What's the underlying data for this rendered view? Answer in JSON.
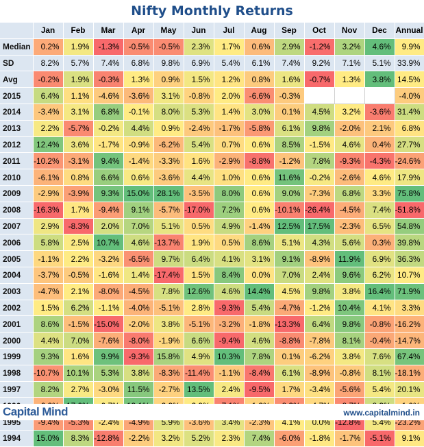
{
  "title": "Nifty Monthly Returns",
  "brand": "Capital Mind",
  "website": "www.capitalmind.in",
  "colors": {
    "header_bg": "#dce6f1",
    "title": "#1f4e8a",
    "low": "#f8696b",
    "mid": "#ffeb84",
    "high": "#63be7b"
  },
  "chart_data": {
    "type": "table",
    "columns": [
      "Jan",
      "Feb",
      "Mar",
      "Apr",
      "May",
      "Jun",
      "Jul",
      "Aug",
      "Sep",
      "Oct",
      "Nov",
      "Dec",
      "Annual"
    ],
    "rows": [
      {
        "label": "Median",
        "values": [
          "0.2%",
          "1.9%",
          "-1.3%",
          "-0.5%",
          "-0.5%",
          "2.3%",
          "1.7%",
          "0.6%",
          "2.9%",
          "-1.2%",
          "3.2%",
          "4.6%",
          "9.9%"
        ],
        "kind": "stat"
      },
      {
        "label": "SD",
        "values": [
          "8.2%",
          "5.7%",
          "7.4%",
          "6.8%",
          "9.8%",
          "6.9%",
          "5.4%",
          "6.1%",
          "7.4%",
          "9.2%",
          "7.1%",
          "5.1%",
          "33.9%"
        ],
        "kind": "sd"
      },
      {
        "label": "Avg",
        "values": [
          "-0.2%",
          "1.9%",
          "-0.3%",
          "1.3%",
          "0.9%",
          "1.5%",
          "1.2%",
          "0.8%",
          "1.6%",
          "-0.7%",
          "1.3%",
          "3.8%",
          "14.5%"
        ],
        "kind": "stat"
      },
      {
        "label": "2015",
        "values": [
          "6.4%",
          "1.1%",
          "-4.6%",
          "-3.6%",
          "3.1%",
          "-0.8%",
          "2.0%",
          "-6.6%",
          "-0.3%",
          "",
          "",
          "",
          "-4.0%"
        ],
        "kind": "year"
      },
      {
        "label": "2014",
        "values": [
          "-3.4%",
          "3.1%",
          "6.8%",
          "-0.1%",
          "8.0%",
          "5.3%",
          "1.4%",
          "3.0%",
          "0.1%",
          "4.5%",
          "3.2%",
          "-3.6%",
          "31.4%"
        ],
        "kind": "year"
      },
      {
        "label": "2013",
        "values": [
          "2.2%",
          "-5.7%",
          "-0.2%",
          "4.4%",
          "0.9%",
          "-2.4%",
          "-1.7%",
          "-5.8%",
          "6.1%",
          "9.8%",
          "-2.0%",
          "2.1%",
          "6.8%"
        ],
        "kind": "year"
      },
      {
        "label": "2012",
        "values": [
          "12.4%",
          "3.6%",
          "-1.7%",
          "-0.9%",
          "-6.2%",
          "5.4%",
          "0.7%",
          "0.6%",
          "8.5%",
          "-1.5%",
          "4.6%",
          "0.4%",
          "27.7%"
        ],
        "kind": "year"
      },
      {
        "label": "2011",
        "values": [
          "-10.2%",
          "-3.1%",
          "9.4%",
          "-1.4%",
          "-3.3%",
          "1.6%",
          "-2.9%",
          "-8.8%",
          "-1.2%",
          "7.8%",
          "-9.3%",
          "-4.3%",
          "-24.6%"
        ],
        "kind": "year"
      },
      {
        "label": "2010",
        "values": [
          "-6.1%",
          "0.8%",
          "6.6%",
          "0.6%",
          "-3.6%",
          "4.4%",
          "1.0%",
          "0.6%",
          "11.6%",
          "-0.2%",
          "-2.6%",
          "4.6%",
          "17.9%"
        ],
        "kind": "year"
      },
      {
        "label": "2009",
        "values": [
          "-2.9%",
          "-3.9%",
          "9.3%",
          "15.0%",
          "28.1%",
          "-3.5%",
          "8.0%",
          "0.6%",
          "9.0%",
          "-7.3%",
          "6.8%",
          "3.3%",
          "75.8%"
        ],
        "kind": "year"
      },
      {
        "label": "2008",
        "values": [
          "-16.3%",
          "1.7%",
          "-9.4%",
          "9.1%",
          "-5.7%",
          "-17.0%",
          "7.2%",
          "0.6%",
          "-10.1%",
          "-26.4%",
          "-4.5%",
          "7.4%",
          "-51.8%"
        ],
        "kind": "year"
      },
      {
        "label": "2007",
        "values": [
          "2.9%",
          "-8.3%",
          "2.0%",
          "7.0%",
          "5.1%",
          "0.5%",
          "4.9%",
          "-1.4%",
          "12.5%",
          "17.5%",
          "-2.3%",
          "6.5%",
          "54.8%"
        ],
        "kind": "year"
      },
      {
        "label": "2006",
        "values": [
          "5.8%",
          "2.5%",
          "10.7%",
          "4.6%",
          "-13.7%",
          "1.9%",
          "0.5%",
          "8.6%",
          "5.1%",
          "4.3%",
          "5.6%",
          "0.3%",
          "39.8%"
        ],
        "kind": "year"
      },
      {
        "label": "2005",
        "values": [
          "-1.1%",
          "2.2%",
          "-3.2%",
          "-6.5%",
          "9.7%",
          "6.4%",
          "4.1%",
          "3.1%",
          "9.1%",
          "-8.9%",
          "11.9%",
          "6.9%",
          "36.3%"
        ],
        "kind": "year"
      },
      {
        "label": "2004",
        "values": [
          "-3.7%",
          "-0.5%",
          "-1.6%",
          "1.4%",
          "-17.4%",
          "1.5%",
          "8.4%",
          "0.0%",
          "7.0%",
          "2.4%",
          "9.6%",
          "6.2%",
          "10.7%"
        ],
        "kind": "year"
      },
      {
        "label": "2003",
        "values": [
          "-4.7%",
          "2.1%",
          "-8.0%",
          "-4.5%",
          "7.8%",
          "12.6%",
          "4.6%",
          "14.4%",
          "4.5%",
          "9.8%",
          "3.8%",
          "16.4%",
          "71.9%"
        ],
        "kind": "year"
      },
      {
        "label": "2002",
        "values": [
          "1.5%",
          "6.2%",
          "-1.1%",
          "-4.0%",
          "-5.1%",
          "2.8%",
          "-9.3%",
          "5.4%",
          "-4.7%",
          "-1.2%",
          "10.4%",
          "4.1%",
          "3.3%"
        ],
        "kind": "year"
      },
      {
        "label": "2001",
        "values": [
          "8.6%",
          "-1.5%",
          "-15.0%",
          "-2.0%",
          "3.8%",
          "-5.1%",
          "-3.2%",
          "-1.8%",
          "-13.3%",
          "6.4%",
          "9.8%",
          "-0.8%",
          "-16.2%"
        ],
        "kind": "year"
      },
      {
        "label": "2000",
        "values": [
          "4.4%",
          "7.0%",
          "-7.6%",
          "-8.0%",
          "-1.9%",
          "6.6%",
          "-9.4%",
          "4.6%",
          "-8.8%",
          "-7.8%",
          "8.1%",
          "-0.4%",
          "-14.7%"
        ],
        "kind": "year"
      },
      {
        "label": "1999",
        "values": [
          "9.3%",
          "1.6%",
          "9.9%",
          "-9.3%",
          "15.8%",
          "4.9%",
          "10.3%",
          "7.8%",
          "0.1%",
          "-6.2%",
          "3.8%",
          "7.6%",
          "67.4%"
        ],
        "kind": "year"
      },
      {
        "label": "1998",
        "values": [
          "-10.7%",
          "10.1%",
          "5.3%",
          "3.8%",
          "-8.3%",
          "-11.4%",
          "-1.1%",
          "-8.4%",
          "6.1%",
          "-8.9%",
          "-0.8%",
          "8.1%",
          "-18.1%"
        ],
        "kind": "year"
      },
      {
        "label": "1997",
        "values": [
          "8.2%",
          "2.7%",
          "-3.0%",
          "11.5%",
          "-2.7%",
          "13.5%",
          "2.4%",
          "-9.5%",
          "1.7%",
          "-3.4%",
          "-5.6%",
          "5.4%",
          "20.1%"
        ],
        "kind": "year"
      },
      {
        "label": "1996",
        "values": [
          "-6.2%",
          "17.0%",
          "-0.7%",
          "13.1%",
          "-2.2%",
          "2.9%",
          "-7.1%",
          "-1.3%",
          "-8.3%",
          "-4.7%",
          "-8.7%",
          "8.3%",
          "-1.0%"
        ],
        "kind": "year"
      },
      {
        "label": "1995",
        "values": [
          "-9.4%",
          "-5.3%",
          "-2.4%",
          "-4.9%",
          "5.9%",
          "-3.6%",
          "3.4%",
          "-2.3%",
          "4.1%",
          "0.0%",
          "-12.8%",
          "5.4%",
          "-23.2%"
        ],
        "kind": "year"
      },
      {
        "label": "1994",
        "values": [
          "15.0%",
          "8.3%",
          "-12.8%",
          "-2.2%",
          "3.2%",
          "5.2%",
          "2.3%",
          "7.4%",
          "-6.0%",
          "-1.8%",
          "-1.7%",
          "-5.1%",
          "9.1%"
        ],
        "kind": "year"
      }
    ]
  }
}
